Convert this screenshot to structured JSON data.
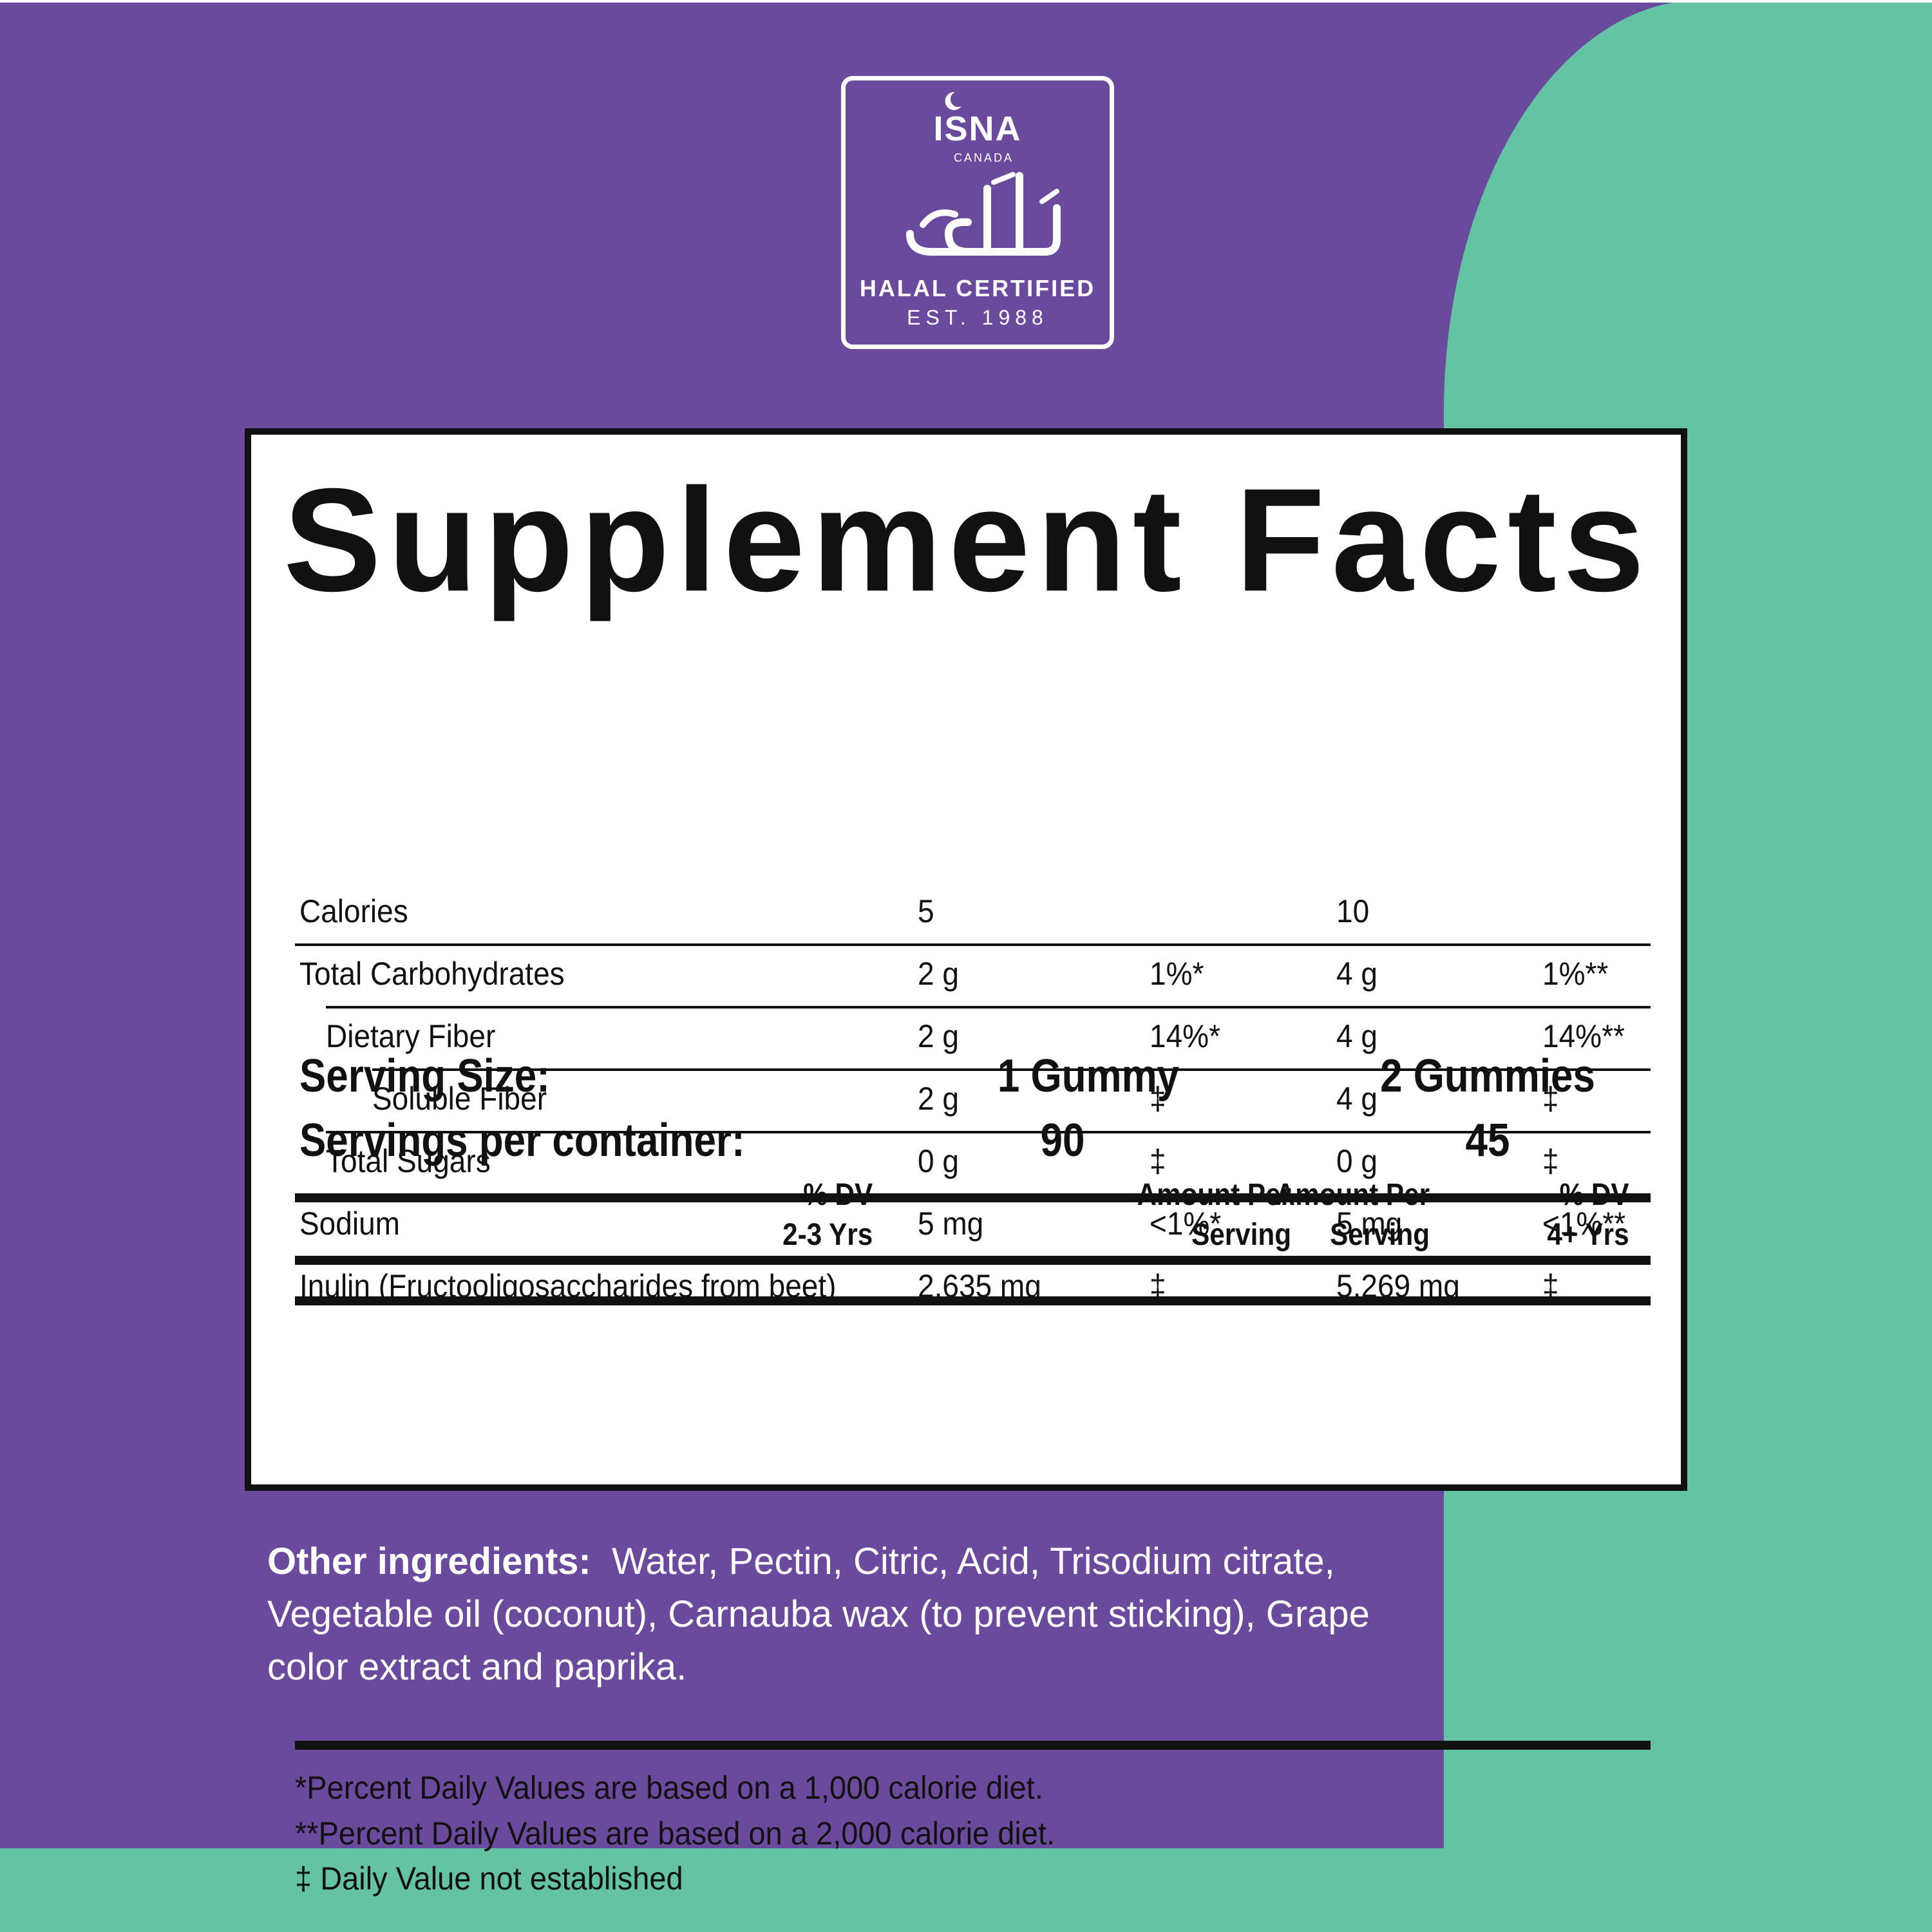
{
  "colors": {
    "purple": "#6a4a9c",
    "teal": "#63c3a3",
    "ink": "#111111",
    "white": "#ffffff"
  },
  "seal": {
    "org": "ISNA",
    "country": "CANADA",
    "arabic": "حلال",
    "certified": "HALAL CERTIFIED",
    "est": "EST. 1988"
  },
  "facts": {
    "title": "Supplement Facts",
    "serving_size_label": "Serving Size:",
    "serving_size_1": "1 Gummy",
    "serving_size_2": "2 Gummies",
    "servings_label": "Servings per container:",
    "servings_1": "90",
    "servings_2": "45",
    "headers": {
      "amount_1": [
        "Amount Per",
        "Serving"
      ],
      "dv_1": [
        "% DV",
        "2-3 Yrs"
      ],
      "amount_2": [
        "Amount Per",
        "Serving"
      ],
      "dv_2": [
        "% DV",
        "4+ Yrs"
      ]
    },
    "rows": [
      {
        "name": "Calories",
        "a1": "5",
        "d1": "",
        "a2": "10",
        "d2": ""
      },
      {
        "name": "Total Carbohydrates",
        "a1": "2 g",
        "d1": "1%*",
        "a2": "4 g",
        "d2": "1%**"
      },
      {
        "name": "Dietary Fiber",
        "a1": "2 g",
        "d1": "14%*",
        "a2": "4 g",
        "d2": "14%**"
      },
      {
        "name": "Soluble Fiber",
        "a1": "2 g",
        "d1": "‡",
        "a2": "4 g",
        "d2": "‡"
      },
      {
        "name": "Total Sugars",
        "a1": "0 g",
        "d1": "‡",
        "a2": "0 g",
        "d2": "‡"
      },
      {
        "name": "Sodium",
        "a1": "5 mg",
        "d1": "<1%*",
        "a2": "5 mg",
        "d2": "<1%**"
      },
      {
        "name": "Inulin (Fructooligosaccharides from beet)",
        "a1": "2,635 mg",
        "d1": "‡",
        "a2": "5,269 mg",
        "d2": "‡"
      }
    ],
    "footnotes": [
      "*Percent Daily Values are based on a 1,000 calorie diet.",
      "**Percent Daily Values are based on a 2,000 calorie diet.",
      "‡ Daily Value not established"
    ]
  },
  "ingredients": {
    "label": "Other ingredients:",
    "text": "Water, Pectin, Citric, Acid, Trisodium citrate, Vegetable oil (coconut), Carnauba wax (to prevent sticking), Grape color extract and paprika."
  }
}
